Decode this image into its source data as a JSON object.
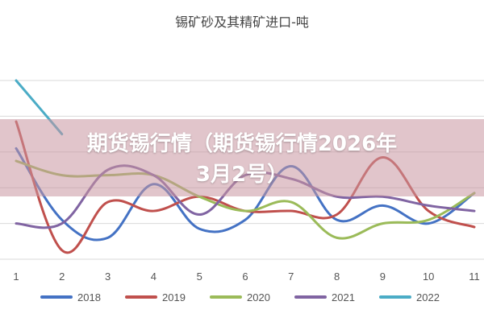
{
  "chart_data": {
    "type": "line",
    "title": "锡矿砂及其精矿进口-吨",
    "categories": [
      "1",
      "2",
      "3",
      "4",
      "5",
      "6",
      "7",
      "8",
      "9",
      "10",
      "11"
    ],
    "grid": true,
    "legend": "bottom",
    "series": [
      {
        "name": "2018",
        "color": "#4472c4",
        "values": [
          62,
          22,
          12,
          42,
          17,
          22,
          52,
          22,
          30,
          20,
          37
        ]
      },
      {
        "name": "2019",
        "color": "#c0504d",
        "values": [
          77,
          5,
          32,
          27,
          35,
          27,
          27,
          25,
          57,
          27,
          18
        ]
      },
      {
        "name": "2020",
        "color": "#9bbb59",
        "values": [
          55,
          47,
          47,
          47,
          35,
          27,
          32,
          12,
          20,
          22,
          37
        ]
      },
      {
        "name": "2021",
        "color": "#8064a2",
        "values": [
          20,
          20,
          50,
          47,
          25,
          47,
          45,
          35,
          35,
          30,
          27
        ]
      },
      {
        "name": "2022",
        "color": "#4bacc6",
        "values": [
          100,
          70,
          null,
          null,
          null,
          null,
          null,
          null,
          null,
          null,
          null
        ]
      }
    ]
  },
  "overlay": {
    "line1": "期货锡行情（期货锡行情2026年",
    "line2": "3月2号）"
  }
}
